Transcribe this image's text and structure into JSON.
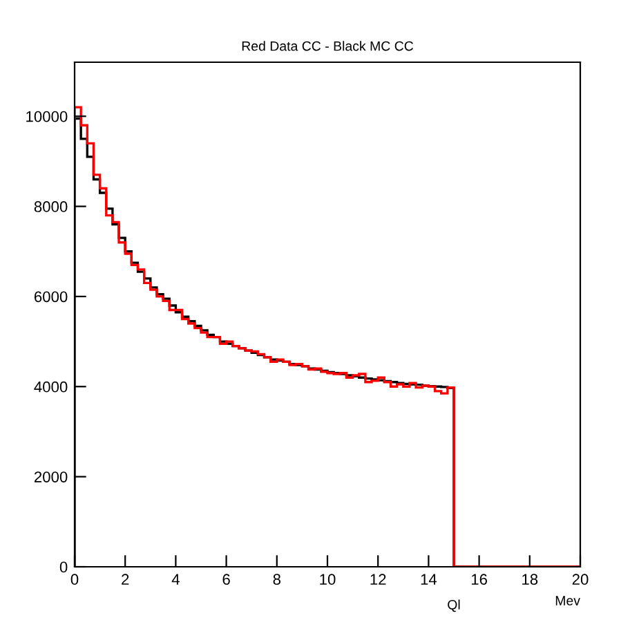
{
  "chart_data": {
    "type": "histogram",
    "title": "Red Data CC - Black MC CC",
    "xlabel": "Mev",
    "annotations": [
      "Ql"
    ],
    "bins": [
      0,
      0.25,
      0.5,
      0.75,
      1,
      1.25,
      1.5,
      1.75,
      2,
      2.25,
      2.5,
      2.75,
      3,
      3.25,
      3.5,
      3.75,
      4,
      4.25,
      4.5,
      4.75,
      5,
      5.25,
      5.5,
      5.75,
      6,
      6.25,
      6.5,
      6.75,
      7,
      7.25,
      7.5,
      7.75,
      8,
      8.25,
      8.5,
      8.75,
      9,
      9.25,
      9.5,
      9.75,
      10,
      10.25,
      10.5,
      10.75,
      11,
      11.25,
      11.5,
      11.75,
      12,
      12.25,
      12.5,
      12.75,
      13,
      13.25,
      13.5,
      13.75,
      14,
      14.25,
      14.5,
      14.75,
      15,
      15.25,
      15.5,
      15.75,
      16,
      16.25,
      16.5,
      16.75,
      17,
      17.25,
      17.5,
      17.75,
      18,
      18.25,
      18.5,
      18.75,
      19,
      19.25,
      19.5,
      19.75,
      20
    ],
    "series": [
      {
        "color": "#000000",
        "values": [
          9950,
          9500,
          9100,
          8600,
          8300,
          7950,
          7600,
          7300,
          7000,
          6750,
          6550,
          6400,
          6200,
          6050,
          5950,
          5800,
          5650,
          5550,
          5450,
          5350,
          5250,
          5150,
          5100,
          5000,
          4950,
          4900,
          4850,
          4800,
          4750,
          4700,
          4650,
          4600,
          4580,
          4550,
          4500,
          4480,
          4450,
          4400,
          4380,
          4350,
          4320,
          4300,
          4280,
          4250,
          4230,
          4200,
          4180,
          4160,
          4140,
          4120,
          4100,
          4080,
          4060,
          4050,
          4040,
          4020,
          4010,
          4000,
          3990,
          3970,
          0,
          0,
          0,
          0,
          0,
          0,
          0,
          0,
          0,
          0,
          0,
          0,
          0,
          0,
          0,
          0,
          0,
          0,
          0,
          0
        ]
      },
      {
        "color": "#ff0000",
        "values": [
          10200,
          9800,
          9400,
          8700,
          8400,
          7800,
          7650,
          7200,
          6950,
          6700,
          6600,
          6300,
          6150,
          6000,
          5900,
          5700,
          5700,
          5500,
          5400,
          5300,
          5200,
          5100,
          5100,
          4950,
          5000,
          4900,
          4850,
          4800,
          4780,
          4720,
          4650,
          4550,
          4600,
          4550,
          4480,
          4500,
          4450,
          4380,
          4400,
          4330,
          4300,
          4280,
          4300,
          4200,
          4250,
          4280,
          4100,
          4130,
          4200,
          4100,
          4000,
          4050,
          4000,
          4080,
          3980,
          4020,
          4000,
          3900,
          3850,
          3980,
          0,
          0,
          0,
          0,
          0,
          0,
          0,
          0,
          0,
          0,
          0,
          0,
          0,
          0,
          0,
          0,
          0,
          0,
          0,
          0
        ]
      }
    ],
    "xlim": [
      0,
      20
    ],
    "xticks": [
      0,
      2,
      4,
      6,
      8,
      10,
      12,
      14,
      16,
      18,
      20
    ],
    "ylim": [
      0,
      11200
    ],
    "yticks": [
      0,
      2000,
      4000,
      6000,
      8000,
      10000
    ],
    "grid": false,
    "legend": false
  }
}
